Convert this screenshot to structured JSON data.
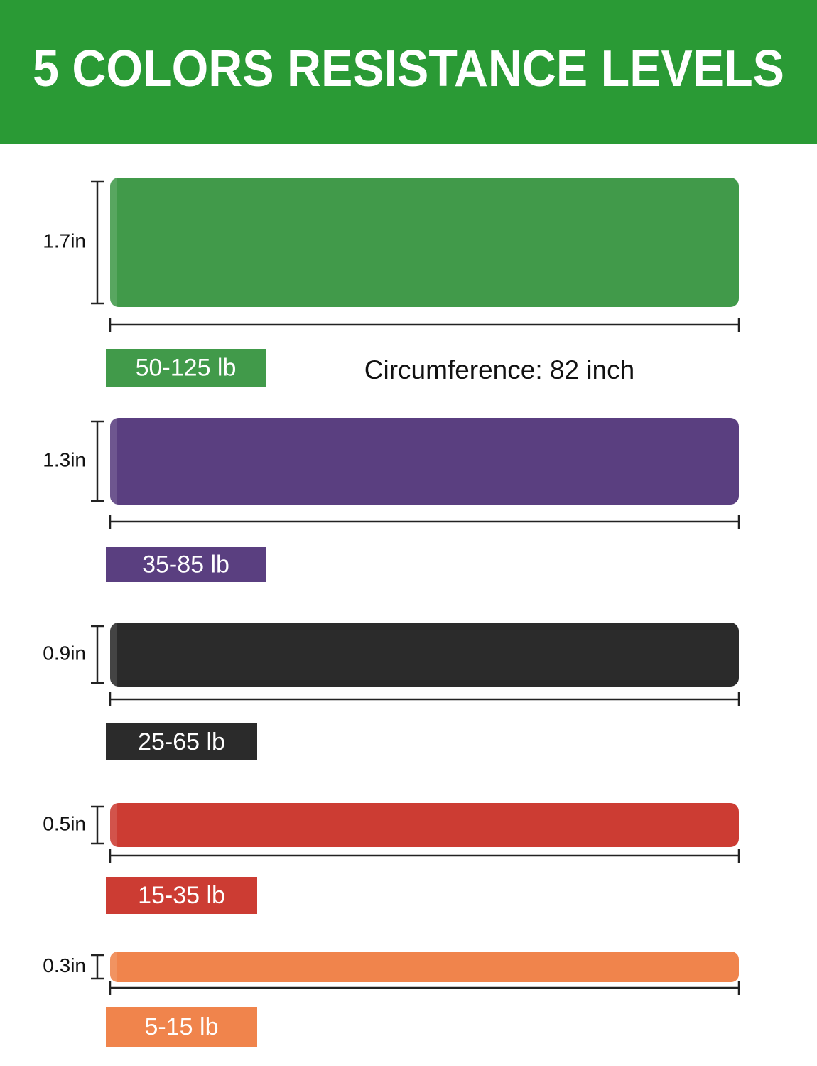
{
  "header": {
    "title": "5 COLORS RESISTANCE LEVELS"
  },
  "circumference": "Circumference: 82 inch",
  "bands": [
    {
      "width": "1.7in",
      "resistance": "50-125 lb",
      "color": "#419a4a"
    },
    {
      "width": "1.3in",
      "resistance": "35-85 lb",
      "color": "#5a3f80"
    },
    {
      "width": "0.9in",
      "resistance": "25-65 lb",
      "color": "#2b2b2b"
    },
    {
      "width": "0.5in",
      "resistance": "15-35 lb",
      "color": "#cc3c33"
    },
    {
      "width": "0.3in",
      "resistance": "5-15 lb",
      "color": "#f0844c"
    }
  ]
}
